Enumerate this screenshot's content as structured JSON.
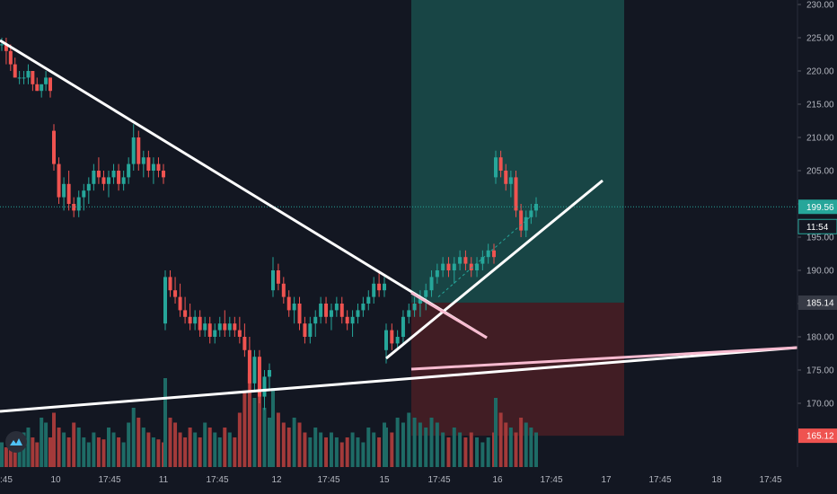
{
  "colors": {
    "background": "#131722",
    "up": "#26a69a",
    "down": "#ef5350",
    "volume_up": "#1e6b66",
    "volume_down": "#a33a3a",
    "profit_zone": "#1a4d4b",
    "loss_zone": "#4a1f24",
    "trendline": "#ffffff",
    "trendline_pink": "#f8bbd0",
    "axis_text": "#b2b5be",
    "tag_bg": "#363a45",
    "tag_current": "#26a69a",
    "tag_stop": "#ef5350"
  },
  "chart_data": {
    "type": "candlestick",
    "title": "",
    "xlabel": "",
    "ylabel": "",
    "y_axis_ticks": [
      "230.00",
      "225.00",
      "220.00",
      "215.00",
      "210.00",
      "205.00",
      "200.00",
      "195.00",
      "190.00",
      "185.00",
      "180.00",
      "175.00",
      "170.00"
    ],
    "x_axis_ticks": [
      "17:45",
      "10",
      "17:45",
      "11",
      "17:45",
      "12",
      "17:45",
      "15",
      "17:45",
      "16",
      "17:45",
      "17",
      "17:45",
      "18",
      "17:45"
    ],
    "first_x_tick_partial": ":45",
    "ylim": [
      163,
      232
    ],
    "price_tags": {
      "current": "199.56",
      "countdown": "11:54",
      "entry": "185.14",
      "stop": "165.12"
    },
    "position": {
      "entry": 185.14,
      "target": 232,
      "stop": 165.12
    },
    "trendlines": [
      {
        "name": "descending",
        "from": [
          0,
          224.5
        ],
        "to": [
          98,
          177.0
        ]
      },
      {
        "name": "ascending",
        "from": [
          95,
          176.5
        ],
        "to": [
          146,
          204.0
        ]
      },
      {
        "name": "long-support",
        "from": [
          0,
          168.5
        ],
        "to": [
          196,
          178.0
        ]
      }
    ],
    "candles": [
      [
        224,
        225,
        223,
        224
      ],
      [
        224,
        225,
        221,
        223
      ],
      [
        223,
        224,
        220,
        221
      ],
      [
        221,
        222,
        219,
        219
      ],
      [
        219,
        220,
        218,
        219
      ],
      [
        219,
        220,
        218,
        219
      ],
      [
        219,
        221,
        218,
        220
      ],
      [
        220,
        220,
        217,
        218
      ],
      [
        218,
        219,
        217,
        217
      ],
      [
        217,
        218,
        216,
        218
      ],
      [
        218,
        220,
        217,
        219
      ],
      [
        219,
        219,
        216,
        217
      ],
      [
        211,
        212,
        205,
        206
      ],
      [
        206,
        207,
        200,
        201
      ],
      [
        201,
        204,
        199,
        203
      ],
      [
        203,
        205,
        199,
        200
      ],
      [
        200,
        201,
        198,
        199
      ],
      [
        199,
        202,
        198,
        201
      ],
      [
        201,
        203,
        199,
        202
      ],
      [
        202,
        204,
        200,
        203
      ],
      [
        203,
        206,
        202,
        205
      ],
      [
        205,
        207,
        203,
        204
      ],
      [
        204,
        205,
        202,
        203
      ],
      [
        203,
        205,
        201,
        204
      ],
      [
        204,
        206,
        203,
        205
      ],
      [
        205,
        206,
        202,
        203
      ],
      [
        203,
        205,
        202,
        204
      ],
      [
        204,
        207,
        203,
        206
      ],
      [
        206,
        212,
        205,
        210
      ],
      [
        210,
        211,
        205,
        206
      ],
      [
        206,
        208,
        204,
        207
      ],
      [
        207,
        208,
        204,
        205
      ],
      [
        205,
        207,
        203,
        206
      ],
      [
        206,
        207,
        204,
        205
      ],
      [
        205,
        206,
        203,
        204
      ],
      [
        182,
        190,
        181,
        189
      ],
      [
        189,
        190,
        186,
        187
      ],
      [
        187,
        189,
        185,
        186
      ],
      [
        186,
        188,
        183,
        184
      ],
      [
        184,
        186,
        182,
        183
      ],
      [
        183,
        185,
        181,
        182
      ],
      [
        182,
        184,
        181,
        183
      ],
      [
        183,
        184,
        180,
        181
      ],
      [
        181,
        183,
        180,
        182
      ],
      [
        182,
        183,
        179,
        180
      ],
      [
        180,
        182,
        179,
        181
      ],
      [
        181,
        183,
        180,
        182
      ],
      [
        182,
        184,
        180,
        181
      ],
      [
        181,
        183,
        180,
        182
      ],
      [
        182,
        183,
        180,
        181
      ],
      [
        181,
        183,
        179,
        180
      ],
      [
        180,
        182,
        177,
        178
      ],
      [
        178,
        180,
        172,
        173
      ],
      [
        173,
        178,
        172,
        177
      ],
      [
        177,
        178,
        170,
        171
      ],
      [
        171,
        175,
        169,
        174
      ],
      [
        174,
        176,
        172,
        175
      ],
      [
        187,
        192,
        186,
        190
      ],
      [
        190,
        191,
        187,
        188
      ],
      [
        188,
        189,
        185,
        186
      ],
      [
        186,
        187,
        183,
        184
      ],
      [
        184,
        186,
        182,
        185
      ],
      [
        185,
        186,
        181,
        182
      ],
      [
        182,
        183,
        179,
        180
      ],
      [
        180,
        183,
        179,
        182
      ],
      [
        182,
        184,
        180,
        183
      ],
      [
        183,
        186,
        182,
        185
      ],
      [
        185,
        186,
        182,
        183
      ],
      [
        183,
        185,
        181,
        184
      ],
      [
        184,
        186,
        183,
        185
      ],
      [
        185,
        186,
        182,
        183
      ],
      [
        183,
        184,
        181,
        182
      ],
      [
        182,
        184,
        180,
        183
      ],
      [
        183,
        185,
        182,
        184
      ],
      [
        184,
        186,
        183,
        185
      ],
      [
        185,
        187,
        184,
        186
      ],
      [
        186,
        189,
        185,
        188
      ],
      [
        188,
        190,
        186,
        187
      ],
      [
        187,
        189,
        186,
        188
      ],
      [
        178,
        182,
        176,
        181
      ],
      [
        181,
        182,
        178,
        179
      ],
      [
        179,
        181,
        178,
        180
      ],
      [
        180,
        184,
        179,
        183
      ],
      [
        183,
        185,
        182,
        184
      ],
      [
        184,
        186,
        183,
        185
      ],
      [
        185,
        187,
        183,
        186
      ],
      [
        186,
        188,
        184,
        187
      ],
      [
        187,
        190,
        186,
        189
      ],
      [
        189,
        191,
        188,
        190
      ],
      [
        190,
        192,
        189,
        191
      ],
      [
        191,
        192,
        189,
        190
      ],
      [
        190,
        192,
        188,
        191
      ],
      [
        191,
        193,
        190,
        192
      ],
      [
        192,
        193,
        190,
        191
      ],
      [
        191,
        192,
        189,
        190
      ],
      [
        190,
        192,
        189,
        191
      ],
      [
        191,
        193,
        190,
        192
      ],
      [
        192,
        194,
        191,
        193
      ],
      [
        193,
        194,
        191,
        192
      ],
      [
        204,
        208,
        203,
        207
      ],
      [
        207,
        208,
        204,
        205
      ],
      [
        205,
        206,
        202,
        203
      ],
      [
        203,
        205,
        201,
        204
      ],
      [
        204,
        205,
        198,
        199
      ],
      [
        199,
        200,
        195,
        196
      ],
      [
        196,
        199,
        195,
        198
      ],
      [
        198,
        200,
        197,
        199
      ],
      [
        199,
        201,
        198,
        200
      ]
    ],
    "volumes": [
      0.25,
      0.2,
      0.3,
      0.28,
      0.22,
      0.35,
      0.4,
      0.3,
      0.25,
      0.5,
      0.45,
      0.3,
      0.55,
      0.4,
      0.35,
      0.3,
      0.45,
      0.4,
      0.3,
      0.25,
      0.35,
      0.3,
      0.28,
      0.4,
      0.35,
      0.3,
      0.25,
      0.45,
      0.6,
      0.5,
      0.4,
      0.35,
      0.3,
      0.28,
      0.25,
      0.9,
      0.5,
      0.45,
      0.35,
      0.3,
      0.4,
      0.35,
      0.3,
      0.45,
      0.4,
      0.35,
      0.3,
      0.4,
      0.35,
      0.3,
      0.55,
      0.75,
      0.95,
      0.7,
      0.85,
      0.6,
      0.5,
      0.8,
      0.55,
      0.45,
      0.4,
      0.5,
      0.45,
      0.35,
      0.3,
      0.4,
      0.35,
      0.3,
      0.35,
      0.3,
      0.25,
      0.3,
      0.35,
      0.3,
      0.25,
      0.4,
      0.35,
      0.3,
      0.45,
      0.4,
      0.35,
      0.5,
      0.45,
      0.55,
      0.5,
      0.45,
      0.4,
      0.5,
      0.45,
      0.35,
      0.3,
      0.4,
      0.35,
      0.3,
      0.35,
      0.3,
      0.25,
      0.3,
      0.35,
      0.7,
      0.55,
      0.45,
      0.4,
      0.35,
      0.5,
      0.45,
      0.4,
      0.35
    ]
  }
}
